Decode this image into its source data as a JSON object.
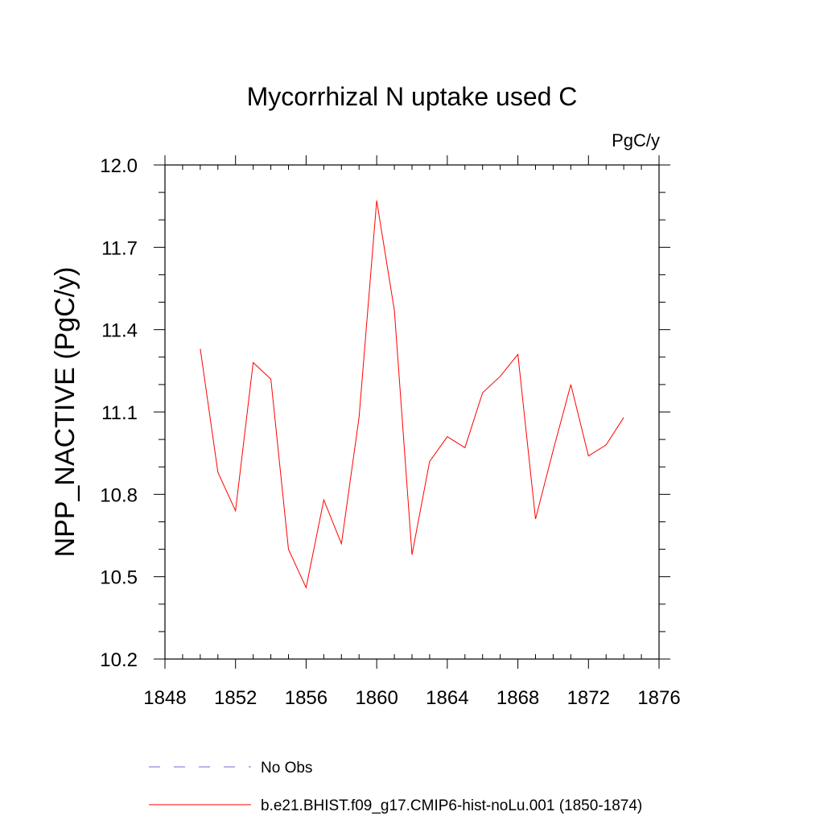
{
  "chart_data": {
    "type": "line",
    "title": "Mycorrhizal N uptake used C",
    "units_label": "PgC/y",
    "ylabel": "NPP_NACTIVE  (PgC/y)",
    "xlabel": "",
    "xlim": [
      1848,
      1876
    ],
    "ylim": [
      10.2,
      12.0
    ],
    "x_ticks": [
      1848,
      1852,
      1856,
      1860,
      1864,
      1868,
      1872,
      1876
    ],
    "x_tick_labels": [
      "1848",
      "1852",
      "1856",
      "1860",
      "1864",
      "1868",
      "1872",
      "1876"
    ],
    "y_ticks": [
      10.2,
      10.5,
      10.8,
      11.1,
      11.4,
      11.7,
      12.0
    ],
    "y_tick_labels": [
      "10.2",
      "10.5",
      "10.8",
      "11.1",
      "11.4",
      "11.7",
      "12.0"
    ],
    "grid": false,
    "legend_position": "bottom",
    "series": [
      {
        "name": "b.e21.BHIST.f09_g17.CMIP6-hist-noLu.001 (1850-1874)",
        "color": "#ff0000",
        "style": "solid",
        "x": [
          1850,
          1851,
          1852,
          1853,
          1854,
          1855,
          1856,
          1857,
          1858,
          1859,
          1860,
          1861,
          1862,
          1863,
          1864,
          1865,
          1866,
          1867,
          1868,
          1869,
          1870,
          1871,
          1872,
          1873,
          1874
        ],
        "values": [
          11.33,
          10.88,
          10.74,
          11.28,
          11.22,
          10.6,
          10.46,
          10.78,
          10.62,
          11.08,
          11.87,
          11.47,
          10.58,
          10.92,
          11.01,
          10.97,
          11.17,
          11.23,
          11.31,
          10.71,
          10.96,
          11.2,
          10.94,
          10.98,
          11.08
        ]
      }
    ],
    "legend_entries": [
      {
        "label": "No Obs",
        "color": "#6b6bd6",
        "style": "dashed"
      },
      {
        "label": "b.e21.BHIST.f09_g17.CMIP6-hist-noLu.001 (1850-1874)",
        "color": "#ff0000",
        "style": "solid"
      }
    ]
  }
}
